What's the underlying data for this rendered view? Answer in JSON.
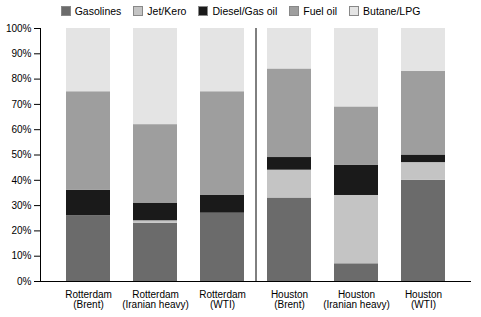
{
  "chart_data": {
    "type": "bar",
    "stacked": true,
    "grid": false,
    "legend": "top",
    "categories": [
      "Rotterdam\n(Brent)",
      "Rotterdam\n(Iranian heavy)",
      "Rotterdam\n(WTI)",
      "Houston\n(Brent)",
      "Houston\n(Iranian heavy)",
      "Houston\n(WTI)"
    ],
    "series": [
      {
        "name": "Gasolines",
        "color": "#6b6b6b",
        "values": [
          26,
          23,
          27,
          33,
          7,
          40
        ]
      },
      {
        "name": "Jet/Kero",
        "color": "#c4c4c4",
        "values": [
          0,
          1,
          0,
          11,
          27,
          7
        ]
      },
      {
        "name": "Diesel/Gas oil",
        "color": "#1a1a1a",
        "values": [
          10,
          7,
          7,
          5,
          12,
          3
        ]
      },
      {
        "name": "Fuel oil",
        "color": "#9e9e9e",
        "values": [
          39,
          31,
          41,
          35,
          23,
          33
        ]
      },
      {
        "name": "Butane/LPG",
        "color": "#e4e4e4",
        "values": [
          25,
          38,
          25,
          16,
          31,
          17
        ]
      }
    ],
    "ylim": [
      0,
      100
    ],
    "yticks": [
      {
        "value": 0,
        "label": "0%"
      },
      {
        "value": 10,
        "label": "10%"
      },
      {
        "value": 20,
        "label": "20%"
      },
      {
        "value": 30,
        "label": "30%"
      },
      {
        "value": 40,
        "label": "40%"
      },
      {
        "value": 50,
        "label": "50%"
      },
      {
        "value": 60,
        "label": "60%"
      },
      {
        "value": 70,
        "label": "70%"
      },
      {
        "value": 80,
        "label": "80%"
      },
      {
        "value": 90,
        "label": "90%"
      },
      {
        "value": 100,
        "label": "100%"
      }
    ]
  }
}
